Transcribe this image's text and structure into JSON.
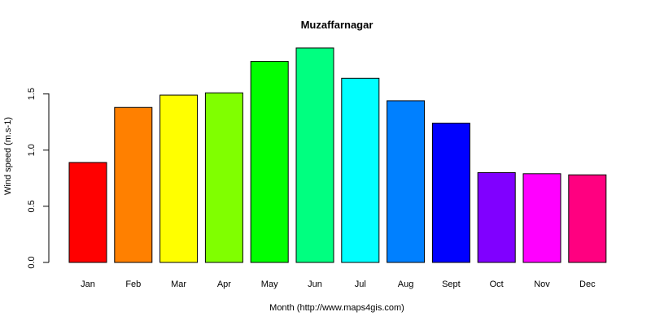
{
  "chart_data": {
    "type": "bar",
    "title": "Muzaffarnagar",
    "xlabel": "Month (http://www.maps4gis.com)",
    "ylabel": "Wind speed (m.s-1)",
    "categories": [
      "Jan",
      "Feb",
      "Mar",
      "Apr",
      "May",
      "Jun",
      "Jul",
      "Aug",
      "Sept",
      "Oct",
      "Nov",
      "Dec"
    ],
    "values": [
      0.89,
      1.38,
      1.49,
      1.51,
      1.79,
      1.91,
      1.64,
      1.44,
      1.24,
      0.8,
      0.79,
      0.78
    ],
    "colors": [
      "#FF0000",
      "#FF8000",
      "#FFFF00",
      "#80FF00",
      "#00FF00",
      "#00FF80",
      "#00FFFF",
      "#0080FF",
      "#0000FF",
      "#8000FF",
      "#FF00FF",
      "#FF0080"
    ],
    "yticks": [
      "0.0",
      "0.5",
      "1.0",
      "1.5"
    ],
    "ylim": [
      0,
      1.91
    ],
    "grid": false
  }
}
